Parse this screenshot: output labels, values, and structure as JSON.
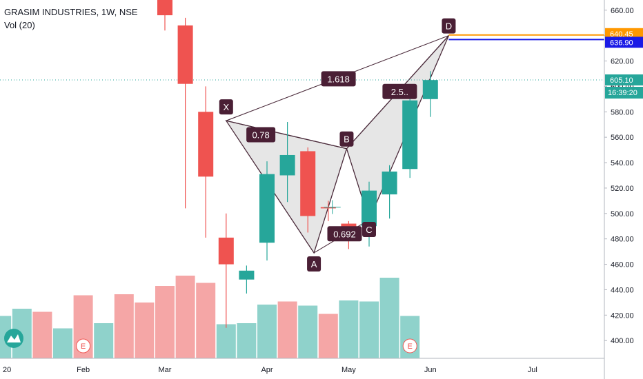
{
  "header": {
    "title": "GRASIM INDUSTRIES, 1W, NSE",
    "volume_label": "Vol (20)"
  },
  "colors": {
    "up": "#26a69a",
    "down": "#ef5350",
    "up_vol": "#8fd2cb",
    "down_vol": "#f5a6a6",
    "pattern_fill": "#dcdcdc",
    "pattern_line": "#4a2a3a",
    "label_bg": "#4a1f35",
    "current_price_bg": "#26a69a",
    "level_orange": "#ff9800",
    "level_blue": "#1a1ae6"
  },
  "chart_data": {
    "type": "candlestick",
    "y_axis": {
      "min": 386,
      "max": 668,
      "ticks": [
        400,
        420,
        440,
        460,
        480,
        500,
        520,
        540,
        560,
        580,
        600,
        620,
        640,
        660
      ]
    },
    "x_axis": {
      "labels": [
        {
          "text": "20",
          "at": -4
        },
        {
          "text": "Feb",
          "at": 0
        },
        {
          "text": "Mar",
          "at": 4
        },
        {
          "text": "Apr",
          "at": 9
        },
        {
          "text": "May",
          "at": 13
        },
        {
          "text": "Jun",
          "at": 17
        },
        {
          "text": "Jul",
          "at": 22
        }
      ]
    },
    "candles": [
      {
        "o": 680,
        "h": 690,
        "l": 644,
        "c": 656
      },
      {
        "o": 648,
        "h": 654,
        "l": 504,
        "c": 602
      },
      {
        "o": 580,
        "h": 600,
        "l": 481,
        "c": 529
      },
      {
        "o": 481,
        "h": 500,
        "l": 410,
        "c": 460
      },
      {
        "o": 448,
        "h": 459,
        "l": 437,
        "c": 455
      },
      {
        "o": 477,
        "h": 541,
        "l": 463,
        "c": 531
      },
      {
        "o": 530,
        "h": 572,
        "l": 509,
        "c": 546
      },
      {
        "o": 549,
        "h": 552,
        "l": 485,
        "c": 498
      },
      {
        "o": 505,
        "h": 510,
        "l": 494,
        "c": 504
      },
      {
        "o": 492,
        "h": 494,
        "l": 472,
        "c": 485
      },
      {
        "o": 490,
        "h": 525,
        "l": 474,
        "c": 518
      },
      {
        "o": 515,
        "h": 538,
        "l": 496,
        "c": 533
      },
      {
        "o": 535,
        "h": 597,
        "l": 528,
        "c": 589
      },
      {
        "o": 590,
        "h": 612,
        "l": 576,
        "c": 605
      }
    ],
    "volumes": [
      {
        "i": -4,
        "v": 0.41,
        "up": true
      },
      {
        "i": -3,
        "v": 0.48,
        "up": true
      },
      {
        "i": -2,
        "v": 0.45,
        "up": false
      },
      {
        "i": -1,
        "v": 0.29,
        "up": true
      },
      {
        "i": 0,
        "v": 0.61,
        "up": false
      },
      {
        "i": 1,
        "v": 0.34,
        "up": true
      },
      {
        "i": 2,
        "v": 0.62,
        "up": false
      },
      {
        "i": 3,
        "v": 0.54,
        "up": false
      },
      {
        "i": 4,
        "v": 0.7,
        "up": false
      },
      {
        "i": 5,
        "v": 0.8,
        "up": false
      },
      {
        "i": 6,
        "v": 0.73,
        "up": false
      },
      {
        "i": 7,
        "v": 0.33,
        "up": true
      },
      {
        "i": 8,
        "v": 0.34,
        "up": true
      },
      {
        "i": 9,
        "v": 0.52,
        "up": true
      },
      {
        "i": 10,
        "v": 0.55,
        "up": false
      },
      {
        "i": 11,
        "v": 0.51,
        "up": true
      },
      {
        "i": 12,
        "v": 0.43,
        "up": false
      },
      {
        "i": 13,
        "v": 0.56,
        "up": true
      },
      {
        "i": 14,
        "v": 0.55,
        "up": true
      },
      {
        "i": 15,
        "v": 0.78,
        "up": true
      },
      {
        "i": 16,
        "v": 0.41,
        "up": true
      }
    ],
    "pattern_points": [
      {
        "name": "X",
        "i": 7.0,
        "price": 573
      },
      {
        "name": "A",
        "i": 11.3,
        "price": 469
      },
      {
        "name": "B",
        "i": 12.9,
        "price": 551
      },
      {
        "name": "C",
        "i": 14.0,
        "price": 495
      },
      {
        "name": "D",
        "i": 17.9,
        "price": 640
      }
    ],
    "ratios": [
      {
        "text": "1.618",
        "i": 12.5,
        "price": 606
      },
      {
        "text": "0.78",
        "i": 8.7,
        "price": 562
      },
      {
        "text": "0.692",
        "i": 12.8,
        "price": 484
      },
      {
        "text": "2.5..",
        "i": 15.5,
        "price": 596
      }
    ],
    "levels": [
      {
        "label": "640.45",
        "price": 640.45,
        "color": "orange"
      },
      {
        "label": "636.90",
        "price": 636.9,
        "color": "blue"
      },
      {
        "label": "605.10",
        "price": 605.1,
        "color": "current"
      }
    ],
    "countdown": "16:39:20",
    "events": [
      {
        "i": 0,
        "text": "E"
      },
      {
        "i": 16,
        "text": "E"
      }
    ]
  }
}
